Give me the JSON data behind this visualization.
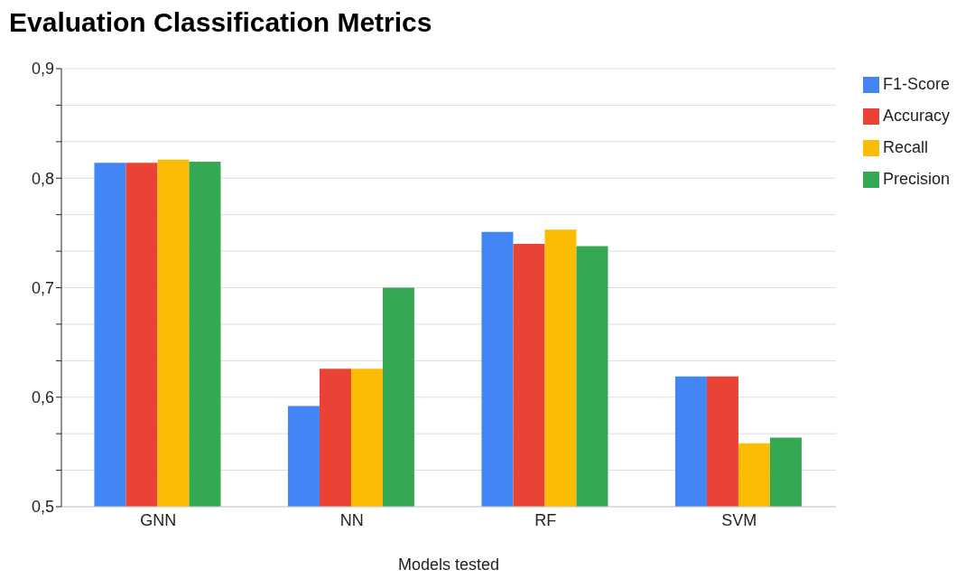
{
  "chart_data": {
    "type": "bar",
    "title": "Evaluation Classification Metrics",
    "xlabel": "Models tested",
    "categories": [
      "GNN",
      "NN",
      "RF",
      "SVM"
    ],
    "series": [
      {
        "name": "F1-Score",
        "color": "#4285f4",
        "values": [
          0.814,
          0.592,
          0.751,
          0.619
        ]
      },
      {
        "name": "Accuracy",
        "color": "#ea4335",
        "values": [
          0.814,
          0.626,
          0.74,
          0.619
        ]
      },
      {
        "name": "Recall",
        "color": "#fbbc04",
        "values": [
          0.817,
          0.626,
          0.753,
          0.558
        ]
      },
      {
        "name": "Precision",
        "color": "#34a853",
        "values": [
          0.815,
          0.7,
          0.738,
          0.563
        ]
      }
    ],
    "ylim": [
      0.5,
      0.9
    ],
    "yticks": [
      {
        "value": 0.5,
        "label": "0,5"
      },
      {
        "value": 0.5333,
        "label": null
      },
      {
        "value": 0.5667,
        "label": null
      },
      {
        "value": 0.6,
        "label": "0,6"
      },
      {
        "value": 0.6333,
        "label": null
      },
      {
        "value": 0.6667,
        "label": null
      },
      {
        "value": 0.7,
        "label": "0,7"
      },
      {
        "value": 0.7333,
        "label": null
      },
      {
        "value": 0.7667,
        "label": null
      },
      {
        "value": 0.8,
        "label": "0,8"
      },
      {
        "value": 0.8333,
        "label": null
      },
      {
        "value": 0.8667,
        "label": null
      },
      {
        "value": 0.9,
        "label": "0,9"
      }
    ],
    "grid": "y",
    "legend": "top right"
  }
}
